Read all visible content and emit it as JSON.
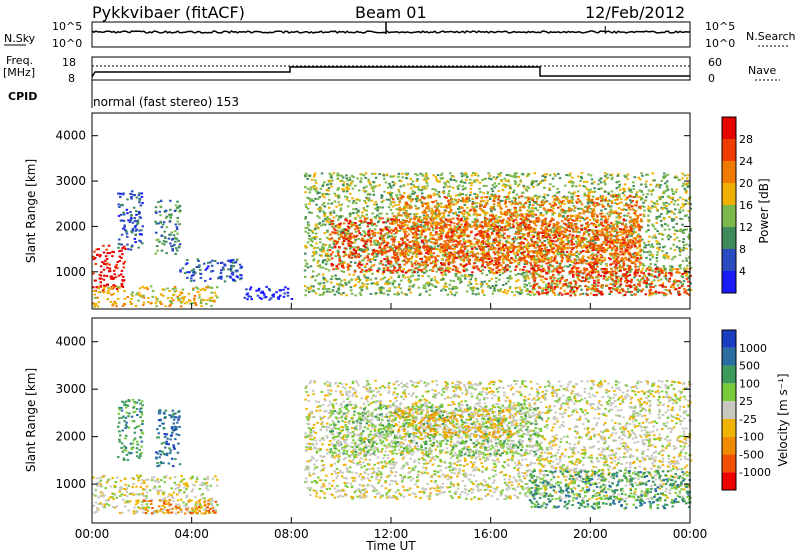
{
  "header": {
    "title": "Pykkvibaer (fitACF)",
    "beam": "Beam 01",
    "date": "12/Feb/2012"
  },
  "panels": {
    "nsky": {
      "label": "N.Sky",
      "left_ticks": [
        "10^5",
        "10^0"
      ],
      "right_ticks": [
        "10^5",
        "10^0"
      ],
      "right_label": "N.Search"
    },
    "freq": {
      "label_line1": "Freq.",
      "label_line2": "[MHz]",
      "left_ticks": [
        "18",
        "8"
      ],
      "right_ticks": [
        "60",
        "0"
      ],
      "right_label": "Nave"
    },
    "cpid": {
      "label": "CPID",
      "text": "normal (fast stereo) 153"
    }
  },
  "colors": {
    "power": [
      "#1a1aff",
      "#2a4cc0",
      "#3f8a5a",
      "#7ab84c",
      "#f0b000",
      "#f07a00",
      "#f03c00",
      "#e60000"
    ],
    "velocity": [
      "#f00000",
      "#f05000",
      "#f08a00",
      "#f0b400",
      "#c8c8c0",
      "#7acc3a",
      "#3c9a5a",
      "#2a6ea0",
      "#1a3ec0"
    ],
    "scatter_grey": "#c8c8c0"
  },
  "chart_data": [
    {
      "type": "heatmap",
      "name": "power",
      "ylabel": "Slant Range [km]",
      "xlabel": "",
      "xlim": [
        "00:00",
        "24:00"
      ],
      "ylim": [
        180,
        4500
      ],
      "yticks": [
        "1000",
        "2000",
        "3000",
        "4000"
      ],
      "xticks": [
        "00:00",
        "04:00",
        "08:00",
        "12:00",
        "16:00",
        "20:00",
        "00:00"
      ],
      "colorbar_label": "Power [dB]",
      "colorbar_ticks": [
        "28",
        "24",
        "20",
        "16",
        "12",
        "8",
        "4"
      ],
      "regions": [
        {
          "t0": 0.0,
          "t1": 1.3,
          "r0": 600,
          "r1": 1600,
          "level": 7
        },
        {
          "t0": 0.0,
          "t1": 5.0,
          "r0": 250,
          "r1": 700,
          "level": 4
        },
        {
          "t0": 1.0,
          "t1": 2.0,
          "r0": 1500,
          "r1": 2800,
          "level": 1
        },
        {
          "t0": 2.5,
          "t1": 3.5,
          "r0": 1400,
          "r1": 2600,
          "level": 2
        },
        {
          "t0": 3.5,
          "t1": 6.0,
          "r0": 800,
          "r1": 1300,
          "level": 1
        },
        {
          "t0": 6.0,
          "t1": 8.0,
          "r0": 400,
          "r1": 700,
          "level": 0
        },
        {
          "t0": 8.5,
          "t1": 24.0,
          "r0": 500,
          "r1": 3200,
          "level": 3
        },
        {
          "t0": 9.5,
          "t1": 22.0,
          "r0": 1000,
          "r1": 2200,
          "level": 6
        },
        {
          "t0": 12.0,
          "t1": 22.0,
          "r0": 1200,
          "r1": 2700,
          "level": 5
        },
        {
          "t0": 17.5,
          "t1": 24.0,
          "r0": 500,
          "r1": 1100,
          "level": 6
        }
      ]
    },
    {
      "type": "heatmap",
      "name": "velocity",
      "ylabel": "Slant Range [km]",
      "xlabel": "Time UT",
      "xlim": [
        "00:00",
        "24:00"
      ],
      "ylim": [
        180,
        4500
      ],
      "yticks": [
        "1000",
        "2000",
        "3000",
        "4000"
      ],
      "xticks": [
        "00:00",
        "04:00",
        "08:00",
        "12:00",
        "16:00",
        "20:00",
        "00:00"
      ],
      "colorbar_label": "Velocity [m s⁻¹]",
      "colorbar_ticks": [
        "1000",
        "500",
        "100",
        "25",
        "-25",
        "-100",
        "-500",
        "-1000"
      ],
      "regions": [
        {
          "t0": 0.0,
          "t1": 5.0,
          "r0": 400,
          "r1": 1200,
          "level": 4
        },
        {
          "t0": 1.0,
          "t1": 2.0,
          "r0": 1500,
          "r1": 2800,
          "level": 6
        },
        {
          "t0": 2.5,
          "t1": 3.5,
          "r0": 1400,
          "r1": 2600,
          "level": 7
        },
        {
          "t0": 2.0,
          "t1": 5.0,
          "r0": 400,
          "r1": 700,
          "level": 2
        },
        {
          "t0": 8.5,
          "t1": 24.0,
          "r0": 700,
          "r1": 3200,
          "level": 4
        },
        {
          "t0": 9.5,
          "t1": 18.0,
          "r0": 1600,
          "r1": 2700,
          "level": 5
        },
        {
          "t0": 12.0,
          "t1": 17.0,
          "r0": 2000,
          "r1": 2600,
          "level": 3
        },
        {
          "t0": 17.5,
          "t1": 24.0,
          "r0": 500,
          "r1": 1300,
          "level": 6
        }
      ]
    }
  ]
}
